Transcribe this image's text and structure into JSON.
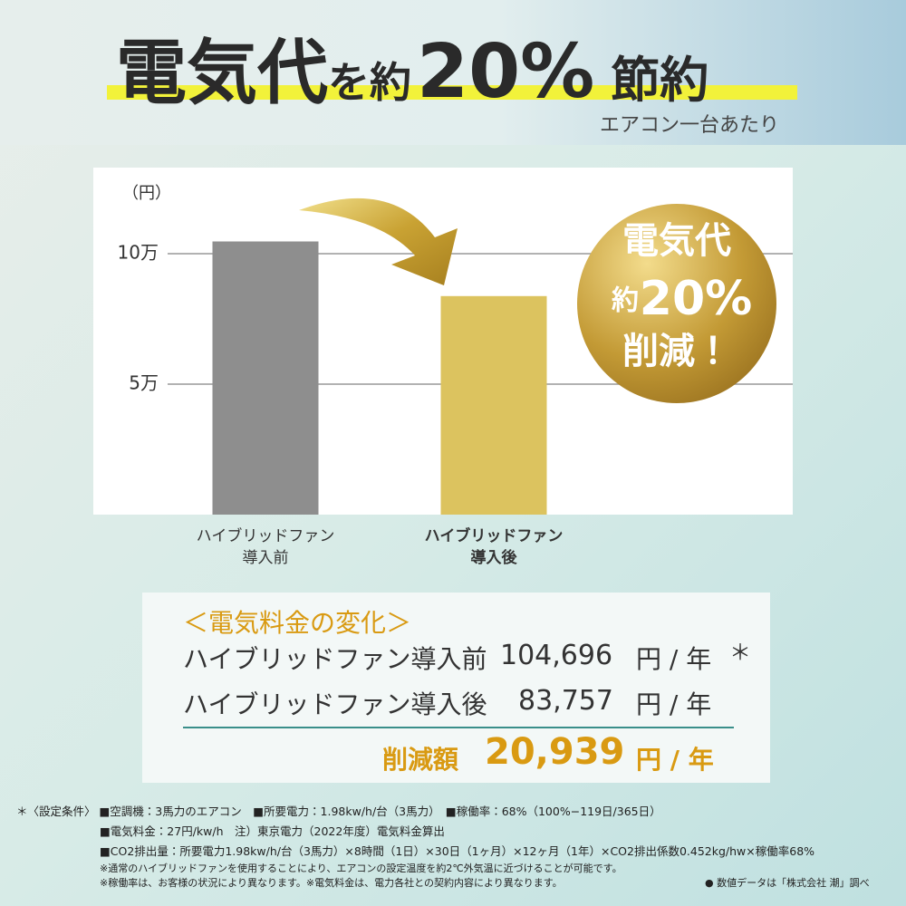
{
  "header": {
    "title_parts": [
      "電気代",
      "を約",
      "20%",
      "節約"
    ],
    "subtitle": "エアコン一台あたり"
  },
  "chart_data": {
    "type": "bar",
    "y_label": "（円）",
    "categories": [
      "ハイブリッドファン\n導入前",
      "ハイブリッドファン\n導入後"
    ],
    "values": [
      104696,
      83757
    ],
    "colors": [
      "#8e8e8e",
      "#dcc35f"
    ],
    "ylim": [
      0,
      133000
    ],
    "yticks": [
      {
        "value": 50000,
        "label": "5万"
      },
      {
        "value": 100000,
        "label": "10万"
      }
    ],
    "grid": true
  },
  "badge": {
    "line1": "電気代",
    "prefix": "約",
    "percent": "20%",
    "line3": "削減！"
  },
  "summary": {
    "heading": "＜電気料金の変化＞",
    "rows": [
      {
        "label": "ハイブリッドファン導入前",
        "amount": "104,696",
        "unit": "円 / 年",
        "note": "＊"
      },
      {
        "label": "ハイブリッドファン導入後",
        "amount": "83,757",
        "unit": "円 / 年"
      }
    ],
    "reduction": {
      "label": "削減額",
      "amount": "20,939",
      "unit": "円 / 年"
    }
  },
  "footnotes": [
    "＊〈設定条件〉 ■空調機：3馬力のエアコン　■所要電力：1.98kw/h/台（3馬力）　■稼働率：68%（100%−119日/365日）",
    "■電気料金：27円/kw/h　注）東京電力（2022年度）電気料金算出",
    "■CO2排出量：所要電力1.98kw/h/台（3馬力）×8時間（1日）×30日（1ヶ月）×12ヶ月（1年）×CO2排出係数0.452kg/hw×稼働率68%",
    "※通常のハイブリッドファンを使用することにより、エアコンの設定温度を約2℃外気温に近づけることが可能です。",
    "※稼働率は、お客様の状況により異なります。※電気料金は、電力各社との契約内容により異なります。",
    "● 数値データは「株式会社 潮」調べ"
  ]
}
